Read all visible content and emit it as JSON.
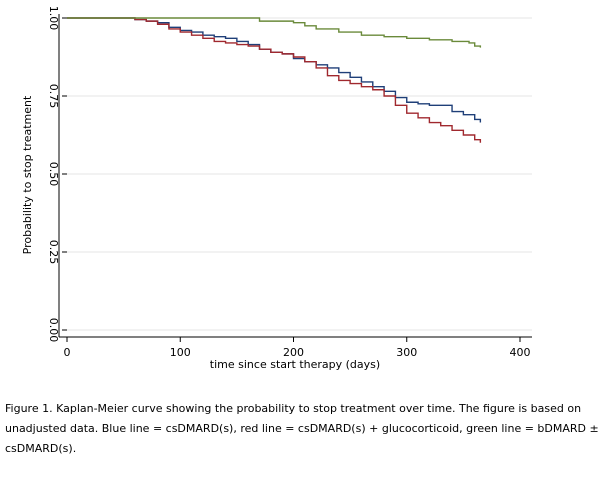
{
  "chart_data": {
    "type": "line",
    "title": "",
    "xlabel": "time since start therapy (days)",
    "ylabel": "Probability to stop treatment",
    "xlim": [
      0,
      400
    ],
    "ylim": [
      0,
      1
    ],
    "xticks": [
      0,
      100,
      200,
      300,
      400
    ],
    "xtick_labels": [
      "0",
      "100",
      "200",
      "300",
      "400"
    ],
    "yticks": [
      0,
      0.25,
      0.5,
      0.75,
      1
    ],
    "ytick_labels": [
      "0.00",
      "0.25",
      "0.50",
      "0.75",
      "1.00"
    ],
    "grid": true,
    "legend": "none",
    "series": [
      {
        "name": "csDMARD(s)",
        "color": "#1f3f78",
        "x": [
          0,
          50,
          60,
          70,
          80,
          90,
          100,
          110,
          120,
          130,
          140,
          150,
          160,
          170,
          180,
          190,
          200,
          210,
          220,
          230,
          240,
          250,
          260,
          270,
          280,
          290,
          300,
          310,
          320,
          330,
          340,
          350,
          360,
          365
        ],
        "y": [
          1.0,
          1.0,
          0.995,
          0.99,
          0.985,
          0.97,
          0.96,
          0.955,
          0.945,
          0.94,
          0.935,
          0.925,
          0.915,
          0.9,
          0.89,
          0.885,
          0.87,
          0.86,
          0.85,
          0.84,
          0.825,
          0.81,
          0.795,
          0.78,
          0.765,
          0.745,
          0.73,
          0.725,
          0.72,
          0.72,
          0.7,
          0.69,
          0.675,
          0.665
        ]
      },
      {
        "name": "csDMARD(s) + glucocorticoid",
        "color": "#a0282e",
        "x": [
          0,
          50,
          60,
          70,
          80,
          90,
          100,
          110,
          120,
          130,
          140,
          150,
          160,
          170,
          180,
          190,
          200,
          210,
          220,
          230,
          240,
          250,
          260,
          270,
          280,
          290,
          300,
          310,
          320,
          330,
          340,
          350,
          360,
          365
        ],
        "y": [
          1.0,
          1.0,
          0.995,
          0.99,
          0.98,
          0.965,
          0.955,
          0.945,
          0.935,
          0.925,
          0.92,
          0.915,
          0.91,
          0.9,
          0.89,
          0.885,
          0.875,
          0.86,
          0.84,
          0.815,
          0.8,
          0.79,
          0.78,
          0.77,
          0.75,
          0.72,
          0.695,
          0.68,
          0.665,
          0.655,
          0.64,
          0.625,
          0.61,
          0.6
        ]
      },
      {
        "name": "bDMARD ± csDMARD(s)",
        "color": "#6a8a3a",
        "x": [
          0,
          160,
          170,
          200,
          210,
          220,
          240,
          260,
          280,
          300,
          320,
          340,
          355,
          360,
          365
        ],
        "y": [
          1.0,
          1.0,
          0.99,
          0.985,
          0.975,
          0.965,
          0.955,
          0.945,
          0.94,
          0.935,
          0.93,
          0.925,
          0.92,
          0.91,
          0.905
        ]
      }
    ]
  },
  "caption": "Figure 1. Kaplan-Meier curve showing the probability to stop treatment over time. The figure is based on unadjusted data. Blue line = csDMARD(s), red line = csDMARD(s) + glucocorticoid, green line = bDMARD ± csDMARD(s)."
}
